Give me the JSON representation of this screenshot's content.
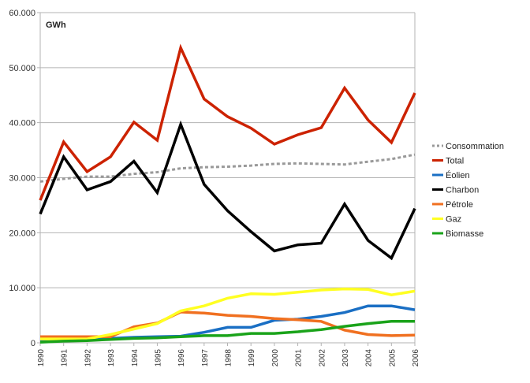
{
  "chart_data": {
    "type": "line",
    "title": "",
    "unit_label": "GWh",
    "xlabel": "",
    "ylabel": "",
    "ylim": [
      0,
      60000
    ],
    "yticks": [
      0,
      10000,
      20000,
      30000,
      40000,
      50000,
      60000
    ],
    "ytick_labels": [
      "0",
      "10.000",
      "20.000",
      "30.000",
      "40.000",
      "50.000",
      "60.000"
    ],
    "grid": true,
    "legend_position": "right",
    "x": [
      "1990",
      "1991",
      "1992",
      "1993",
      "1994",
      "1995",
      "1996",
      "1997",
      "1998",
      "1999",
      "2000",
      "2001",
      "2002",
      "2003",
      "2004",
      "2005",
      "2006"
    ],
    "series": [
      {
        "name": "Consommation",
        "color": "#999999",
        "dashed": true,
        "values": [
          29300,
          29800,
          30200,
          30200,
          30700,
          31000,
          31700,
          31900,
          32000,
          32200,
          32500,
          32600,
          32500,
          32400,
          32900,
          33400,
          34200
        ]
      },
      {
        "name": "Total",
        "color": "#cc2200",
        "dashed": false,
        "values": [
          25900,
          36500,
          31100,
          33800,
          40100,
          36800,
          53600,
          44300,
          41100,
          39000,
          36100,
          37800,
          39100,
          46300,
          40500,
          36400,
          45400
        ]
      },
      {
        "name": "Éolien",
        "color": "#1a6fc4",
        "dashed": false,
        "values": [
          300,
          400,
          600,
          800,
          1000,
          1100,
          1200,
          1900,
          2800,
          2800,
          4100,
          4300,
          4800,
          5500,
          6700,
          6700,
          6000
        ]
      },
      {
        "name": "Charbon",
        "color": "#000000",
        "dashed": false,
        "values": [
          23400,
          33800,
          27800,
          29300,
          33000,
          27300,
          39700,
          28800,
          24000,
          20200,
          16700,
          17800,
          18100,
          25200,
          18600,
          15400,
          24400
        ]
      },
      {
        "name": "Pétrole",
        "color": "#f07020",
        "dashed": false,
        "values": [
          1100,
          1100,
          1100,
          1100,
          2900,
          3600,
          5600,
          5400,
          5000,
          4800,
          4400,
          4200,
          3900,
          2300,
          1500,
          1300,
          1400
        ]
      },
      {
        "name": "Gaz",
        "color": "#ffff22",
        "dashed": false,
        "values": [
          700,
          700,
          700,
          1500,
          2500,
          3500,
          5800,
          6700,
          8100,
          8900,
          8800,
          9200,
          9600,
          9800,
          9700,
          8700,
          9400
        ]
      },
      {
        "name": "Biomasse",
        "color": "#1aa31a",
        "dashed": false,
        "values": [
          100,
          300,
          400,
          600,
          800,
          900,
          1100,
          1300,
          1300,
          1700,
          1700,
          2000,
          2400,
          3000,
          3500,
          3900,
          3900
        ]
      }
    ]
  }
}
